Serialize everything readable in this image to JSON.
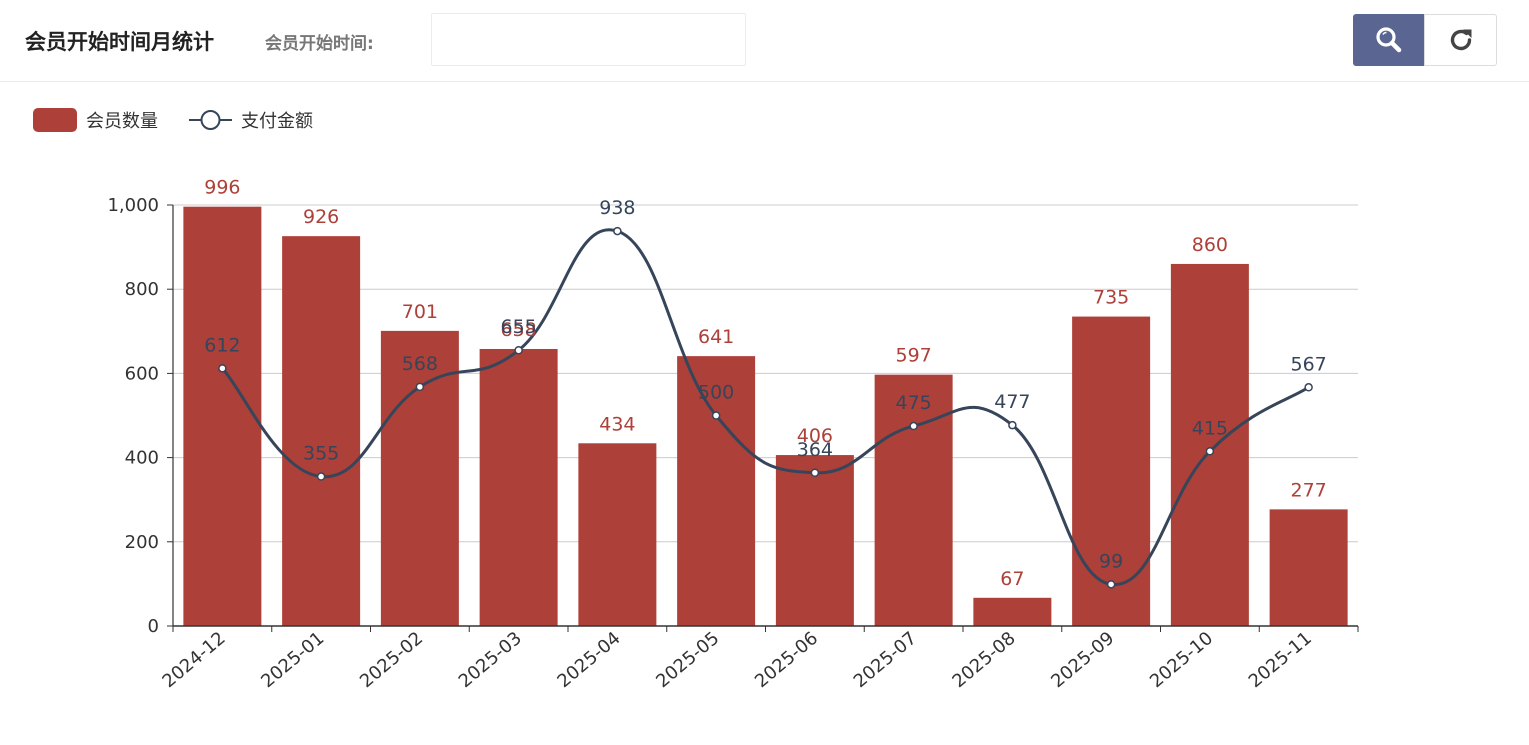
{
  "header": {
    "title": "会员开始时间月统计",
    "filter_label": "会员开始时间:",
    "date_input_value": "",
    "date_input_placeholder": ""
  },
  "colors": {
    "bar": "#ad4038",
    "line": "#36455a",
    "search_button": "#5b6591",
    "grid": "#cccccc"
  },
  "icons": {
    "search": "search-icon",
    "refresh": "refresh-icon"
  },
  "chart_data": {
    "type": "bar",
    "title": "",
    "xlabel": "",
    "ylabel": "",
    "ylim": [
      0,
      1000
    ],
    "yticks": [
      0,
      200,
      400,
      600,
      800,
      1000
    ],
    "ytick_labels": [
      "0",
      "200",
      "400",
      "600",
      "800",
      "1,000"
    ],
    "grid": true,
    "legend_position": "top-left",
    "categories": [
      "2024-12",
      "2025-01",
      "2025-02",
      "2025-03",
      "2025-04",
      "2025-05",
      "2025-06",
      "2025-07",
      "2025-08",
      "2025-09",
      "2025-10",
      "2025-11"
    ],
    "series": [
      {
        "name": "会员数量",
        "type": "bar",
        "values": [
          996,
          926,
          701,
          658,
          434,
          641,
          406,
          597,
          67,
          735,
          860,
          277
        ]
      },
      {
        "name": "支付金额",
        "type": "line",
        "smooth": true,
        "values": [
          612,
          355,
          568,
          655,
          938,
          500,
          364,
          475,
          477,
          99,
          415,
          567
        ]
      }
    ]
  }
}
